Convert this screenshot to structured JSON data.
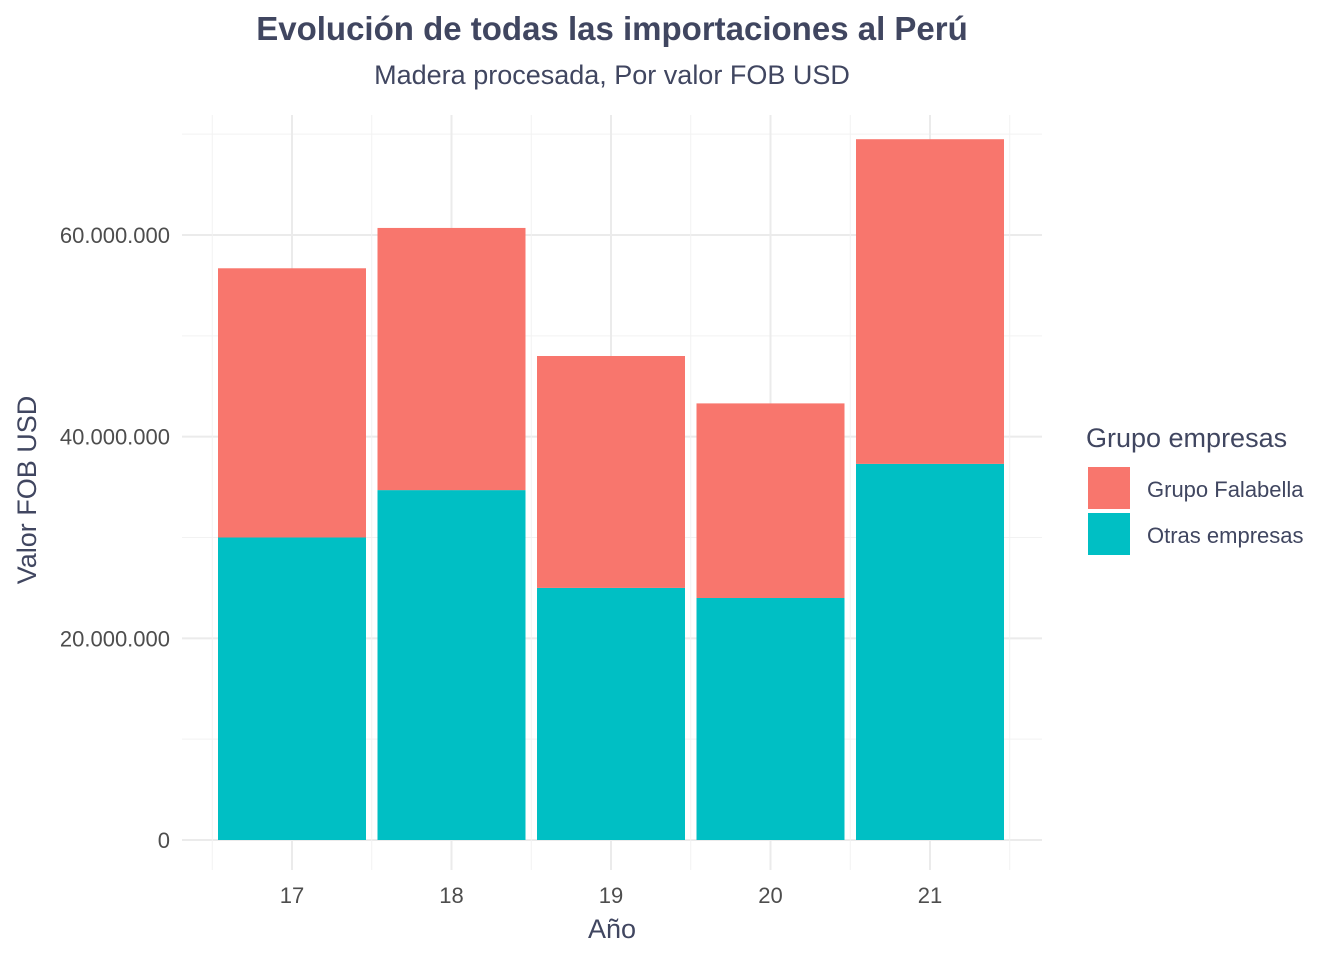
{
  "chart_data": {
    "type": "bar",
    "stacked": true,
    "title": "Evolución de todas las importaciones al Perú",
    "subtitle": "Madera procesada, Por valor FOB USD",
    "xlabel": "Año",
    "ylabel": "Valor FOB USD",
    "categories": [
      "17",
      "18",
      "19",
      "20",
      "21"
    ],
    "ylim": [
      0,
      70000000
    ],
    "yticks": [
      0,
      20000000,
      40000000,
      60000000
    ],
    "ytick_labels": [
      "0",
      "20.000.000",
      "40.000.000",
      "60.000.000"
    ],
    "grid": true,
    "legend": {
      "title": "Grupo empresas",
      "position": "right"
    },
    "series": [
      {
        "name": "Otras empresas",
        "color": "#00BFC4",
        "values": [
          30000000,
          34700000,
          25000000,
          24000000,
          37300000
        ]
      },
      {
        "name": "Grupo Falabella",
        "color": "#F8766D",
        "values": [
          26700000,
          26000000,
          23000000,
          19300000,
          32200000
        ]
      }
    ],
    "legend_order": [
      "Grupo Falabella",
      "Otras empresas"
    ]
  }
}
